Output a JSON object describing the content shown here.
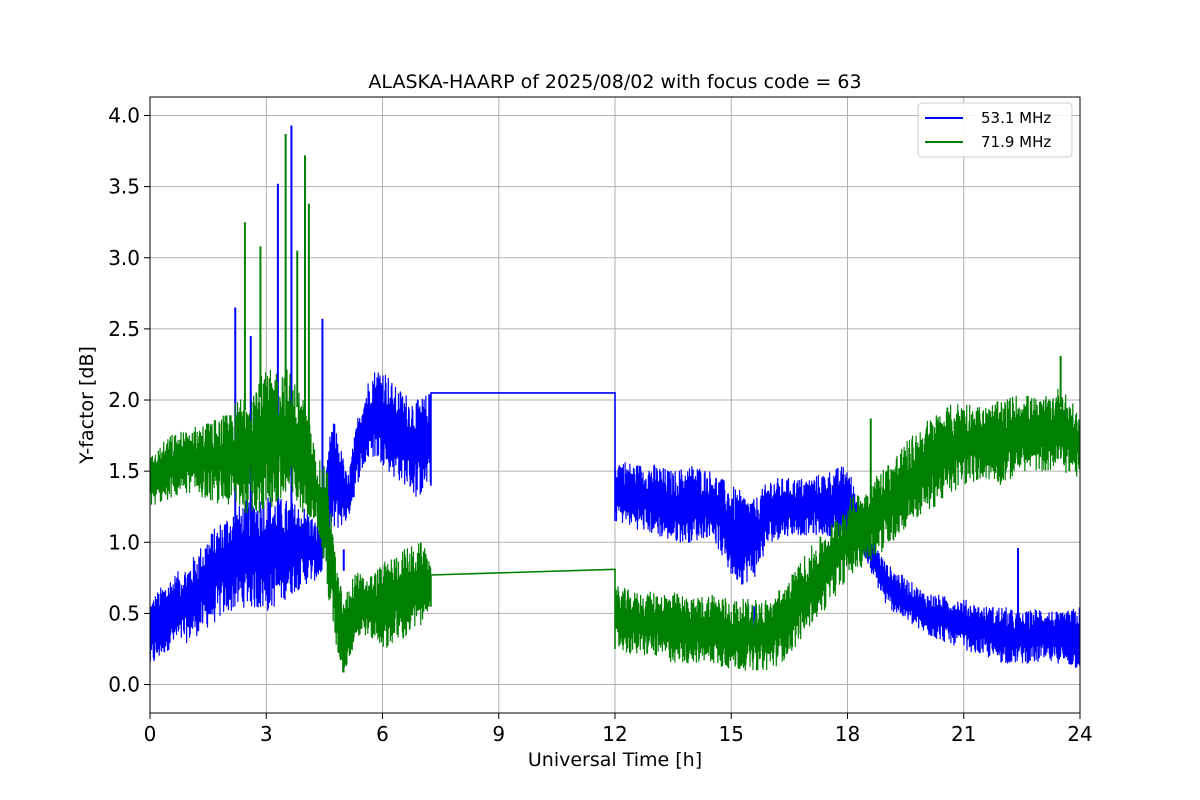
{
  "chart_data": {
    "type": "line",
    "title": "ALASKA-HAARP of 2025/08/02 with focus code = 63",
    "xlabel": "Universal Time [h]",
    "ylabel": "Y-factor [dB]",
    "xlim": [
      0,
      24
    ],
    "ylim": [
      -0.2,
      4.13
    ],
    "xticks": [
      "0",
      "3",
      "6",
      "9",
      "12",
      "15",
      "18",
      "21",
      "24"
    ],
    "yticks": [
      "0.0",
      "0.5",
      "1.0",
      "1.5",
      "2.0",
      "2.5",
      "3.0",
      "3.5",
      "4.0"
    ],
    "grid": true,
    "legend_position": "top-right",
    "series": [
      {
        "name": "53.1 MHz",
        "color": "#0000ff",
        "envelope_x": [
          0,
          0.5,
          1,
          1.5,
          2,
          2.5,
          3,
          3.5,
          4,
          4.4,
          4.7,
          4.9,
          5.1,
          5.4,
          5.7,
          6,
          6.3,
          6.6,
          6.9,
          7.2,
          12,
          12.5,
          13,
          13.5,
          14,
          14.5,
          15,
          15.3,
          15.6,
          16,
          16.5,
          17,
          17.5,
          18,
          18.5,
          19,
          19.5,
          20,
          20.5,
          21,
          21.5,
          22,
          22.5,
          23,
          23.5,
          24
        ],
        "envelope_low": [
          0.1,
          0.25,
          0.3,
          0.4,
          0.5,
          0.55,
          0.5,
          0.6,
          0.7,
          0.75,
          1.05,
          1.1,
          1.15,
          1.45,
          1.6,
          1.55,
          1.45,
          1.4,
          1.3,
          1.4,
          1.15,
          1.1,
          1.05,
          1.0,
          1.0,
          1.05,
          0.75,
          0.7,
          0.75,
          1.0,
          1.05,
          1.05,
          1.05,
          1.0,
          0.85,
          0.55,
          0.45,
          0.35,
          0.3,
          0.25,
          0.2,
          0.15,
          0.15,
          0.15,
          0.15,
          0.1
        ],
        "envelope_high": [
          0.6,
          0.75,
          0.85,
          1.05,
          1.2,
          1.3,
          1.35,
          1.3,
          1.25,
          1.1,
          1.9,
          1.7,
          1.45,
          1.95,
          2.2,
          2.25,
          2.1,
          2.05,
          2.0,
          2.05,
          1.6,
          1.55,
          1.55,
          1.5,
          1.55,
          1.5,
          1.4,
          1.35,
          1.3,
          1.45,
          1.45,
          1.45,
          1.5,
          1.55,
          1.1,
          0.85,
          0.75,
          0.65,
          0.62,
          0.6,
          0.55,
          0.55,
          0.5,
          0.55,
          0.5,
          0.55
        ],
        "flat_segment": {
          "x": [
            7.25,
            12.0
          ],
          "y": 2.05
        },
        "spikes": [
          {
            "x": 2.2,
            "y": 2.65
          },
          {
            "x": 2.6,
            "y": 2.45
          },
          {
            "x": 3.3,
            "y": 3.52
          },
          {
            "x": 3.65,
            "y": 3.93
          },
          {
            "x": 4.45,
            "y": 2.57
          },
          {
            "x": 5.0,
            "y": 0.95
          },
          {
            "x": 15.6,
            "y": 0.55
          },
          {
            "x": 22.4,
            "y": 0.96
          }
        ]
      },
      {
        "name": "71.9 MHz",
        "color": "#008000",
        "envelope_x": [
          0,
          0.5,
          1,
          1.5,
          2,
          2.5,
          3,
          3.5,
          4,
          4.3,
          4.6,
          4.8,
          5,
          5.3,
          5.6,
          6,
          6.5,
          7,
          7.2,
          12,
          12.5,
          13,
          13.5,
          14,
          14.5,
          15,
          15.5,
          16,
          16.5,
          17,
          17.5,
          18,
          18.5,
          19,
          19.5,
          20,
          20.5,
          21,
          21.5,
          22,
          22.5,
          23,
          23.5,
          24
        ],
        "envelope_low": [
          1.25,
          1.3,
          1.35,
          1.3,
          1.25,
          1.2,
          1.2,
          1.25,
          1.2,
          1.15,
          0.6,
          0.25,
          0.05,
          0.3,
          0.35,
          0.25,
          0.3,
          0.4,
          0.55,
          0.25,
          0.2,
          0.2,
          0.15,
          0.15,
          0.15,
          0.1,
          0.1,
          0.1,
          0.2,
          0.4,
          0.55,
          0.75,
          0.85,
          0.95,
          1.1,
          1.2,
          1.3,
          1.4,
          1.45,
          1.4,
          1.5,
          1.5,
          1.5,
          1.45
        ],
        "envelope_high": [
          1.6,
          1.75,
          1.8,
          1.85,
          1.9,
          2.1,
          2.2,
          2.25,
          2.0,
          1.6,
          1.5,
          0.85,
          0.6,
          0.8,
          0.75,
          0.85,
          0.95,
          1.0,
          0.9,
          0.7,
          0.65,
          0.65,
          0.65,
          0.6,
          0.65,
          0.6,
          0.6,
          0.6,
          0.75,
          0.95,
          1.1,
          1.3,
          1.4,
          1.55,
          1.7,
          1.85,
          1.95,
          2.0,
          1.95,
          2.0,
          2.05,
          2.0,
          2.1,
          1.9
        ],
        "flat_segment": {
          "x": [
            7.25,
            12.0
          ],
          "y_start": 0.77,
          "y_end": 0.81
        },
        "spikes": [
          {
            "x": 2.45,
            "y": 3.25
          },
          {
            "x": 2.85,
            "y": 3.08
          },
          {
            "x": 3.5,
            "y": 3.87
          },
          {
            "x": 3.8,
            "y": 3.05
          },
          {
            "x": 4.0,
            "y": 3.72
          },
          {
            "x": 4.1,
            "y": 3.38
          },
          {
            "x": 18.6,
            "y": 1.87
          },
          {
            "x": 23.5,
            "y": 2.31
          }
        ]
      }
    ]
  }
}
